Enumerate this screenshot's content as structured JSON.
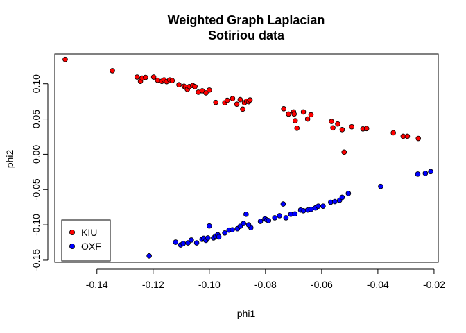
{
  "chart_data": {
    "type": "scatter",
    "title": "Weighted Graph Laplacian",
    "subtitle": "Sotiriou data",
    "xlabel": "phi1",
    "ylabel": "phi2",
    "xlim": [
      -0.155,
      -0.0185
    ],
    "ylim": [
      -0.153,
      0.142
    ],
    "x_ticks": [
      -0.14,
      -0.12,
      -0.1,
      -0.08,
      -0.06,
      -0.04,
      -0.02
    ],
    "x_tick_labels": [
      "-0.14",
      "-0.12",
      "-0.10",
      "-0.08",
      "-0.06",
      "-0.04",
      "-0.02"
    ],
    "y_ticks": [
      -0.15,
      -0.1,
      -0.05,
      0.0,
      0.05,
      0.1
    ],
    "y_tick_labels": [
      "-0.15",
      "-0.10",
      "-0.05",
      "0.00",
      "0.05",
      "0.10"
    ],
    "grid": false,
    "legend_position": "bottom-left",
    "series": [
      {
        "name": "KIU",
        "color": "#ff0000",
        "points": [
          [
            -0.1513,
            0.1345
          ],
          [
            -0.1345,
            0.1185
          ],
          [
            -0.1257,
            0.1095
          ],
          [
            -0.1245,
            0.1035
          ],
          [
            -0.1239,
            0.108
          ],
          [
            -0.1227,
            0.109
          ],
          [
            -0.1198,
            0.1095
          ],
          [
            -0.1184,
            0.105
          ],
          [
            -0.1169,
            0.1035
          ],
          [
            -0.1161,
            0.1055
          ],
          [
            -0.1152,
            0.103
          ],
          [
            -0.1141,
            0.1055
          ],
          [
            -0.1132,
            0.1045
          ],
          [
            -0.1108,
            0.0985
          ],
          [
            -0.109,
            0.0965
          ],
          [
            -0.1085,
            0.095
          ],
          [
            -0.1078,
            0.092
          ],
          [
            -0.1071,
            0.096
          ],
          [
            -0.1059,
            0.0975
          ],
          [
            -0.1051,
            0.096
          ],
          [
            -0.1039,
            0.088
          ],
          [
            -0.1025,
            0.09
          ],
          [
            -0.1012,
            0.087
          ],
          [
            -0.1,
            0.091
          ],
          [
            -0.0977,
            0.0735
          ],
          [
            -0.0945,
            0.073
          ],
          [
            -0.0936,
            0.0765
          ],
          [
            -0.0917,
            0.079
          ],
          [
            -0.0902,
            0.071
          ],
          [
            -0.089,
            0.0775
          ],
          [
            -0.0881,
            0.064
          ],
          [
            -0.0875,
            0.073
          ],
          [
            -0.0867,
            0.0755
          ],
          [
            -0.086,
            0.0745
          ],
          [
            -0.0855,
            0.077
          ],
          [
            -0.0735,
            0.0645
          ],
          [
            -0.0718,
            0.057
          ],
          [
            -0.07,
            0.06
          ],
          [
            -0.0698,
            0.057
          ],
          [
            -0.0694,
            0.0475
          ],
          [
            -0.0688,
            0.037
          ],
          [
            -0.0665,
            0.06
          ],
          [
            -0.065,
            0.05
          ],
          [
            -0.0638,
            0.056
          ],
          [
            -0.0565,
            0.0465
          ],
          [
            -0.056,
            0.0375
          ],
          [
            -0.0543,
            0.043
          ],
          [
            -0.0527,
            0.035
          ],
          [
            -0.052,
            0.003
          ],
          [
            -0.0493,
            0.039
          ],
          [
            -0.0453,
            0.036
          ],
          [
            -0.044,
            0.0365
          ],
          [
            -0.0345,
            0.0305
          ],
          [
            -0.031,
            0.0255
          ],
          [
            -0.0295,
            0.0255
          ],
          [
            -0.0256,
            0.0225
          ]
        ]
      },
      {
        "name": "OXF",
        "color": "#0000ff",
        "points": [
          [
            -0.1214,
            -0.144
          ],
          [
            -0.112,
            -0.1245
          ],
          [
            -0.1102,
            -0.1285
          ],
          [
            -0.1093,
            -0.1265
          ],
          [
            -0.1076,
            -0.1255
          ],
          [
            -0.1064,
            -0.1215
          ],
          [
            -0.1045,
            -0.1255
          ],
          [
            -0.1026,
            -0.1205
          ],
          [
            -0.102,
            -0.119
          ],
          [
            -0.1012,
            -0.122
          ],
          [
            -0.1005,
            -0.1185
          ],
          [
            -0.1,
            -0.1015
          ],
          [
            -0.0985,
            -0.1185
          ],
          [
            -0.0978,
            -0.116
          ],
          [
            -0.097,
            -0.114
          ],
          [
            -0.0966,
            -0.117
          ],
          [
            -0.0945,
            -0.1115
          ],
          [
            -0.093,
            -0.1075
          ],
          [
            -0.0918,
            -0.107
          ],
          [
            -0.09,
            -0.1055
          ],
          [
            -0.089,
            -0.102
          ],
          [
            -0.0878,
            -0.098
          ],
          [
            -0.0869,
            -0.085
          ],
          [
            -0.0852,
            -0.104
          ],
          [
            -0.086,
            -0.1
          ],
          [
            -0.0818,
            -0.095
          ],
          [
            -0.0802,
            -0.0915
          ],
          [
            -0.0795,
            -0.093
          ],
          [
            -0.0789,
            -0.094
          ],
          [
            -0.0767,
            -0.09
          ],
          [
            -0.075,
            -0.087
          ],
          [
            -0.0737,
            -0.0705
          ],
          [
            -0.0727,
            -0.09
          ],
          [
            -0.071,
            -0.085
          ],
          [
            -0.0695,
            -0.0845
          ],
          [
            -0.0675,
            -0.079
          ],
          [
            -0.0665,
            -0.08
          ],
          [
            -0.065,
            -0.079
          ],
          [
            -0.0638,
            -0.078
          ],
          [
            -0.0622,
            -0.076
          ],
          [
            -0.0612,
            -0.0735
          ],
          [
            -0.0595,
            -0.0735
          ],
          [
            -0.0568,
            -0.068
          ],
          [
            -0.0553,
            -0.067
          ],
          [
            -0.0536,
            -0.065
          ],
          [
            -0.0527,
            -0.061
          ],
          [
            -0.0505,
            -0.0555
          ],
          [
            -0.039,
            -0.0455
          ],
          [
            -0.0258,
            -0.028
          ],
          [
            -0.0231,
            -0.027
          ],
          [
            -0.0212,
            -0.0245
          ]
        ]
      }
    ]
  }
}
